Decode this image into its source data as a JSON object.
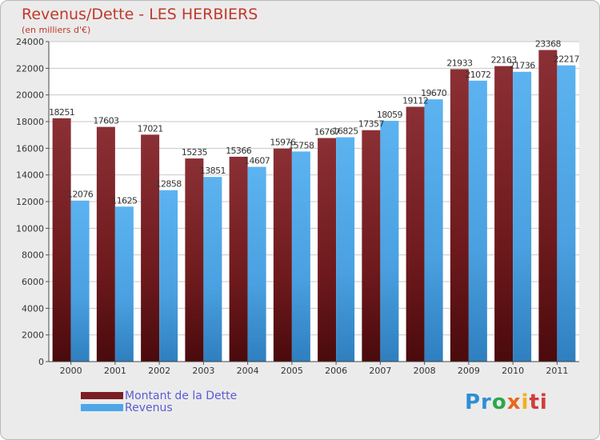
{
  "header": {
    "title": "Revenus/Dette - LES HERBIERS",
    "subtitle": "(en milliers d'€)"
  },
  "chart_data": {
    "type": "bar",
    "categories": [
      "2000",
      "2001",
      "2002",
      "2003",
      "2004",
      "2005",
      "2006",
      "2007",
      "2008",
      "2009",
      "2010",
      "2011"
    ],
    "series": [
      {
        "name": "Montant de la Dette",
        "color": "#7a1f22",
        "values": [
          18251,
          17603,
          17021,
          15235,
          15366,
          15976,
          16767,
          17357,
          19112,
          21933,
          22163,
          23368
        ],
        "labels": [
          "18251",
          "17603",
          "17021",
          "15235",
          "15366",
          "15976",
          "16767",
          "17357",
          "19112",
          "21933",
          "22163",
          "23368"
        ]
      },
      {
        "name": "Revenus",
        "color": "#4da6e8",
        "values": [
          12076,
          11625,
          12858,
          13851,
          14607,
          15758,
          16825,
          18059,
          19670,
          21072,
          21736,
          22217
        ],
        "labels": [
          "12076",
          "11625",
          "12858",
          "13851",
          "14607",
          "15758",
          "16825",
          "18059",
          "19670",
          "21072",
          "21736",
          "22217"
        ]
      }
    ],
    "ylim": [
      0,
      24000
    ],
    "yticks": [
      "0",
      "2000",
      "4000",
      "6000",
      "8000",
      "10000",
      "12000",
      "14000",
      "16000",
      "18000",
      "20000",
      "22000",
      "24000"
    ],
    "grid": true,
    "legend": "bottom-left"
  },
  "legend": {
    "items": [
      {
        "label": "Montant de la Dette",
        "color": "#7a1f22"
      },
      {
        "label": "Revenus",
        "color": "#4da6e8"
      }
    ]
  },
  "logo": {
    "p1": "Pr",
    "p2": "o",
    "p3": "x",
    "p4": "i",
    "p5": "ti"
  }
}
